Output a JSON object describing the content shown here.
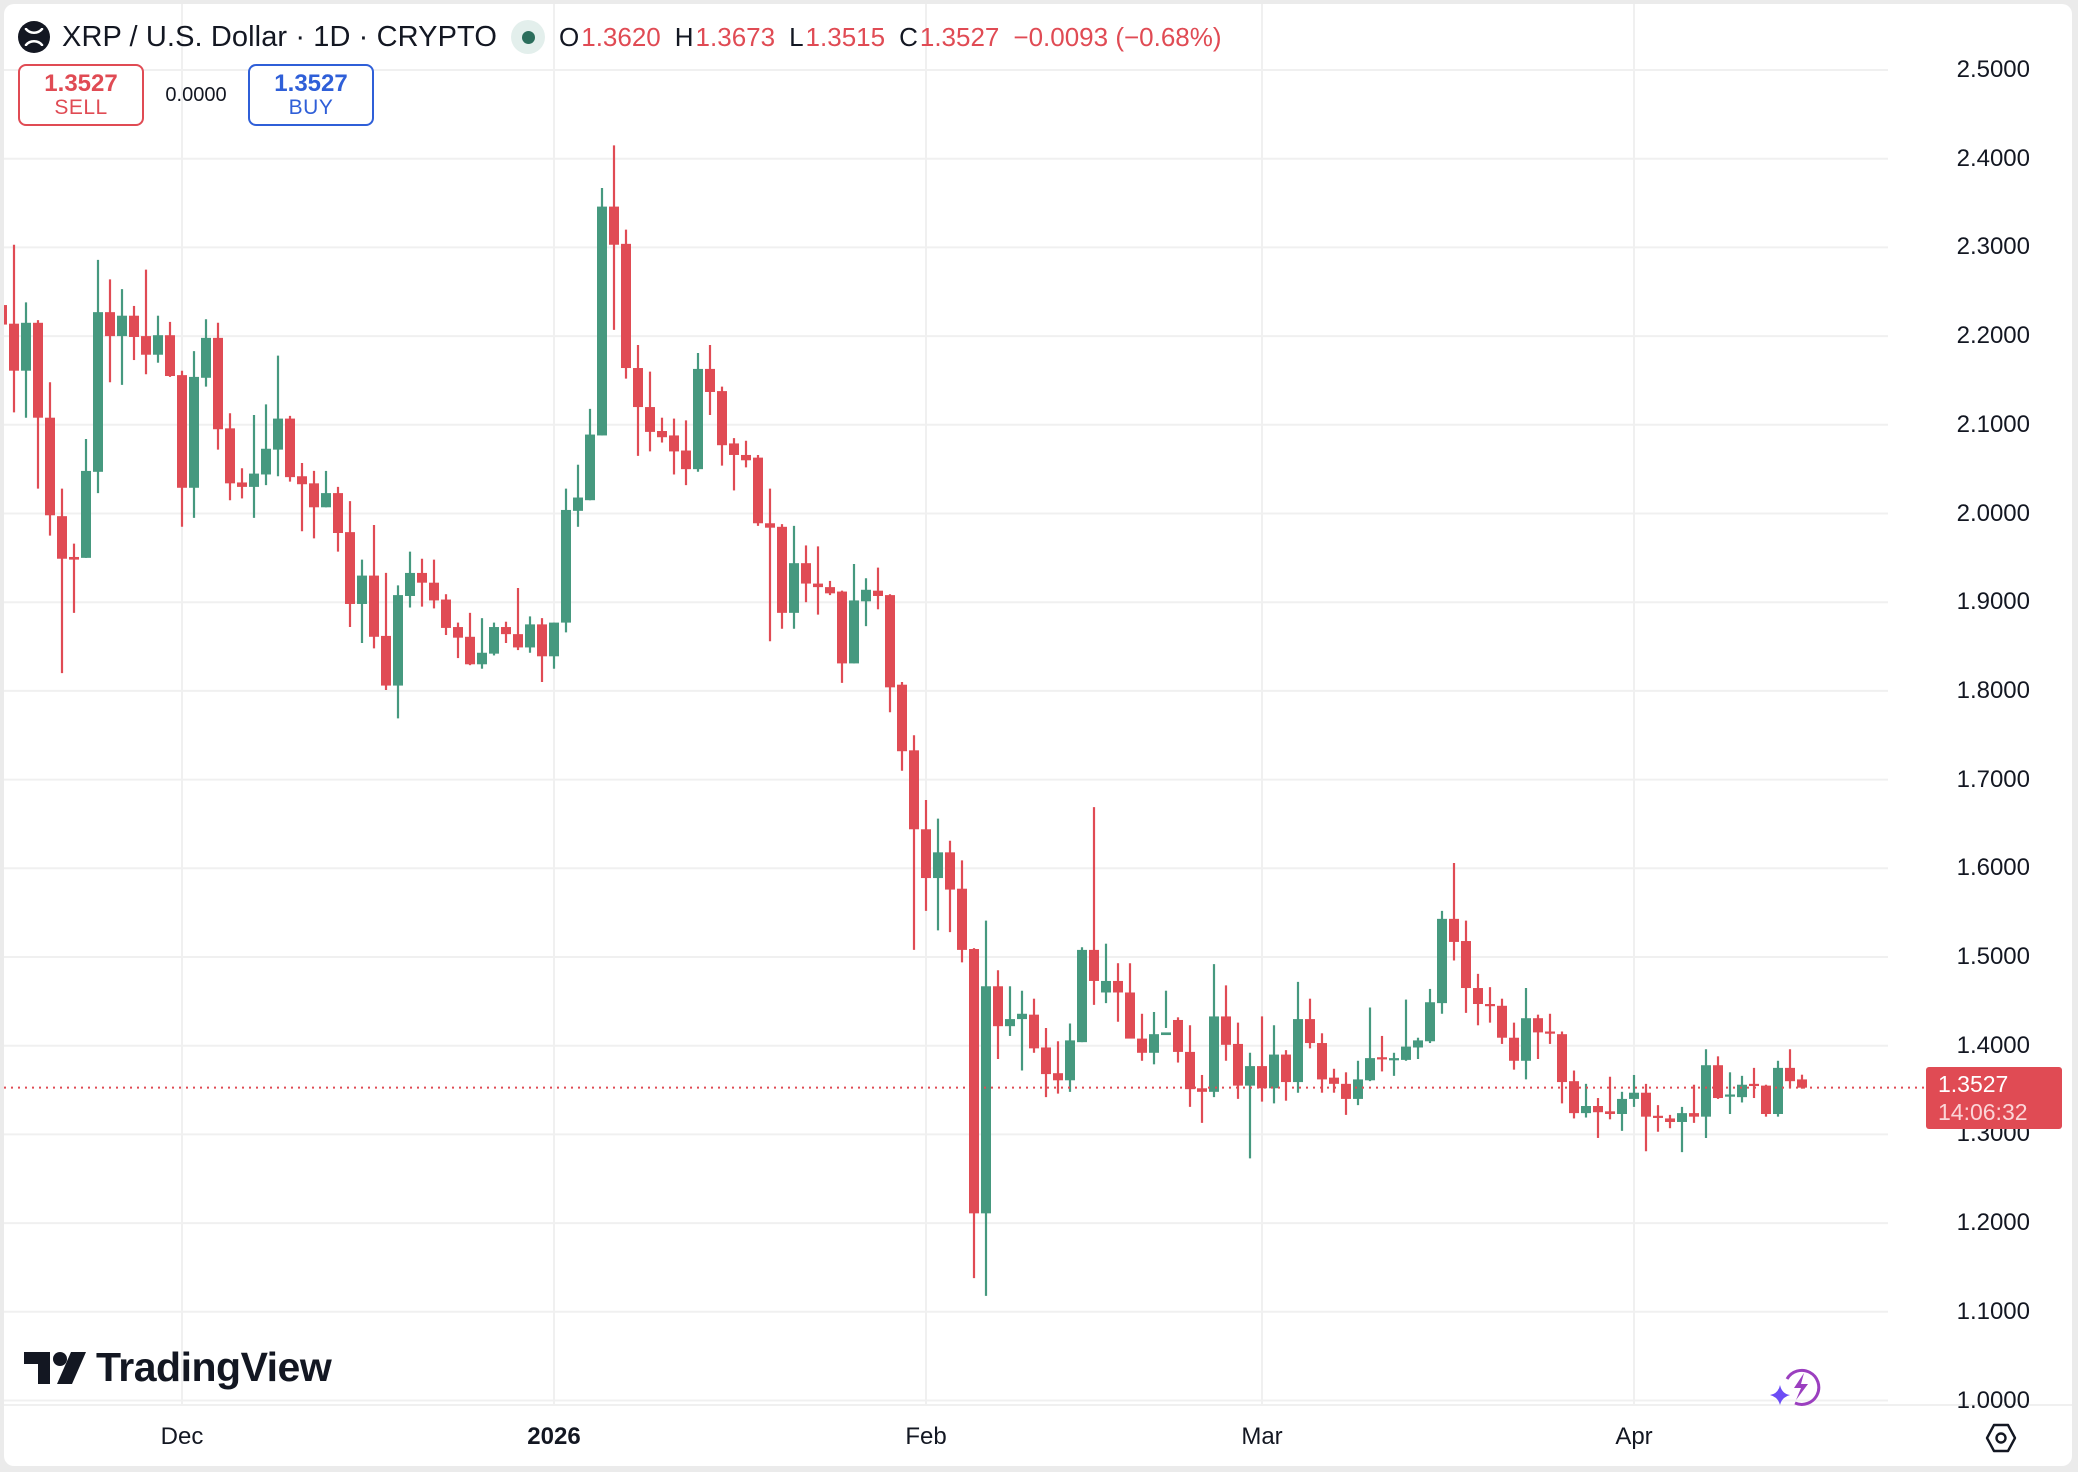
{
  "header": {
    "symbol_icon": "xrp-logo-icon",
    "title": "XRP / U.S. Dollar · 1D · CRYPTO",
    "status": "market-open-dot",
    "ohlc": {
      "o_label": "O",
      "o_value": "1.3620",
      "h_label": "H",
      "h_value": "1.3673",
      "l_label": "L",
      "l_value": "1.3515",
      "c_label": "C",
      "c_value": "1.3527",
      "change": "−0.0093 (−0.68%)"
    }
  },
  "trade": {
    "sell_price": "1.3527",
    "sell_label": "SELL",
    "spread": "0.0000",
    "buy_price": "1.3527",
    "buy_label": "BUY"
  },
  "price_tag": {
    "price": "1.3527",
    "countdown": "14:06:32"
  },
  "branding": {
    "logo_text": "TradingView"
  },
  "icons": {
    "assistant": "sparkle-lightning-icon",
    "settings": "settings-hex-icon"
  },
  "colors": {
    "up": "#46997f",
    "down": "#e04b54",
    "grid": "#f0f0f0",
    "sell": "#e04b54",
    "buy": "#2f5fd8"
  },
  "chart_data": {
    "type": "candlestick",
    "title": "XRP / U.S. Dollar · 1D · CRYPTO",
    "xlabel": "",
    "ylabel": "",
    "ylim": [
      1.0,
      2.5
    ],
    "y_ticks": [
      "2.5000",
      "2.4000",
      "2.3000",
      "2.2000",
      "2.1000",
      "2.0000",
      "1.9000",
      "1.8000",
      "1.7000",
      "1.6000",
      "1.5000",
      "1.4000",
      "1.3000",
      "1.2000",
      "1.1000",
      "1.0000"
    ],
    "x_ticks": [
      {
        "label": "Dec",
        "date": "Dec 1",
        "bold": false
      },
      {
        "label": "2026",
        "date": "Jan 1",
        "bold": true
      },
      {
        "label": "Feb",
        "date": "Feb 1",
        "bold": false
      },
      {
        "label": "Mar",
        "date": "Mar 1",
        "bold": false
      },
      {
        "label": "Apr",
        "date": "Apr 1",
        "bold": false
      }
    ],
    "grid": true,
    "current_price": 1.3527,
    "start_date": "Nov 16",
    "columns": [
      "open",
      "high",
      "low",
      "close"
    ],
    "candles": [
      [
        2.235,
        2.24,
        2.2,
        2.213
      ],
      [
        2.214,
        2.303,
        2.114,
        2.161
      ],
      [
        2.161,
        2.238,
        2.108,
        2.215
      ],
      [
        2.215,
        2.218,
        2.028,
        2.108
      ],
      [
        2.108,
        2.148,
        1.975,
        1.998
      ],
      [
        1.997,
        2.028,
        1.82,
        1.949
      ],
      [
        1.951,
        1.966,
        1.888,
        1.948
      ],
      [
        1.95,
        2.084,
        1.95,
        2.048
      ],
      [
        2.047,
        2.286,
        2.023,
        2.227
      ],
      [
        2.227,
        2.264,
        2.148,
        2.2
      ],
      [
        2.2,
        2.253,
        2.145,
        2.223
      ],
      [
        2.223,
        2.234,
        2.173,
        2.199
      ],
      [
        2.2,
        2.275,
        2.157,
        2.179
      ],
      [
        2.179,
        2.223,
        2.17,
        2.201
      ],
      [
        2.201,
        2.216,
        2.154,
        2.155
      ],
      [
        2.156,
        2.161,
        1.985,
        2.029
      ],
      [
        2.029,
        2.183,
        1.995,
        2.154
      ],
      [
        2.153,
        2.219,
        2.143,
        2.198
      ],
      [
        2.198,
        2.215,
        2.072,
        2.095
      ],
      [
        2.096,
        2.113,
        2.015,
        2.034
      ],
      [
        2.035,
        2.051,
        2.017,
        2.03
      ],
      [
        2.03,
        2.111,
        1.995,
        2.045
      ],
      [
        2.044,
        2.123,
        2.032,
        2.073
      ],
      [
        2.072,
        2.178,
        2.042,
        2.107
      ],
      [
        2.107,
        2.11,
        2.036,
        2.041
      ],
      [
        2.042,
        2.057,
        1.98,
        2.033
      ],
      [
        2.034,
        2.048,
        1.972,
        2.007
      ],
      [
        2.007,
        2.048,
        2.007,
        2.023
      ],
      [
        2.023,
        2.03,
        1.957,
        1.978
      ],
      [
        1.979,
        2.014,
        1.872,
        1.898
      ],
      [
        1.898,
        1.948,
        1.854,
        1.93
      ],
      [
        1.93,
        1.987,
        1.848,
        1.861
      ],
      [
        1.862,
        1.933,
        1.801,
        1.806
      ],
      [
        1.806,
        1.919,
        1.769,
        1.908
      ],
      [
        1.907,
        1.957,
        1.894,
        1.933
      ],
      [
        1.933,
        1.949,
        1.895,
        1.922
      ],
      [
        1.922,
        1.948,
        1.893,
        1.902
      ],
      [
        1.903,
        1.909,
        1.863,
        1.871
      ],
      [
        1.872,
        1.877,
        1.837,
        1.86
      ],
      [
        1.861,
        1.888,
        1.829,
        1.83
      ],
      [
        1.83,
        1.882,
        1.825,
        1.843
      ],
      [
        1.842,
        1.877,
        1.84,
        1.872
      ],
      [
        1.872,
        1.878,
        1.854,
        1.864
      ],
      [
        1.864,
        1.916,
        1.846,
        1.849
      ],
      [
        1.849,
        1.884,
        1.843,
        1.875
      ],
      [
        1.875,
        1.882,
        1.81,
        1.839
      ],
      [
        1.839,
        1.877,
        1.825,
        1.877
      ],
      [
        1.877,
        2.028,
        1.866,
        2.004
      ],
      [
        2.003,
        2.055,
        1.985,
        2.018
      ],
      [
        2.015,
        2.118,
        2.015,
        2.089
      ],
      [
        2.088,
        2.367,
        2.088,
        2.346
      ],
      [
        2.346,
        2.415,
        2.207,
        2.303
      ],
      [
        2.304,
        2.32,
        2.152,
        2.164
      ],
      [
        2.164,
        2.19,
        2.065,
        2.12
      ],
      [
        2.12,
        2.16,
        2.07,
        2.092
      ],
      [
        2.093,
        2.108,
        2.08,
        2.086
      ],
      [
        2.088,
        2.107,
        2.044,
        2.07
      ],
      [
        2.071,
        2.105,
        2.032,
        2.05
      ],
      [
        2.05,
        2.181,
        2.047,
        2.163
      ],
      [
        2.163,
        2.19,
        2.111,
        2.137
      ],
      [
        2.138,
        2.143,
        2.054,
        2.077
      ],
      [
        2.079,
        2.085,
        2.026,
        2.066
      ],
      [
        2.066,
        2.082,
        2.052,
        2.06
      ],
      [
        2.063,
        2.066,
        1.986,
        1.989
      ],
      [
        1.989,
        2.028,
        1.856,
        1.984
      ],
      [
        1.985,
        1.988,
        1.87,
        1.888
      ],
      [
        1.888,
        1.986,
        1.87,
        1.944
      ],
      [
        1.944,
        1.964,
        1.9,
        1.921
      ],
      [
        1.921,
        1.963,
        1.886,
        1.917
      ],
      [
        1.917,
        1.924,
        1.908,
        1.91
      ],
      [
        1.912,
        1.913,
        1.809,
        1.831
      ],
      [
        1.831,
        1.943,
        1.831,
        1.902
      ],
      [
        1.901,
        1.927,
        1.873,
        1.914
      ],
      [
        1.913,
        1.939,
        1.892,
        1.907
      ],
      [
        1.908,
        1.909,
        1.776,
        1.804
      ],
      [
        1.807,
        1.81,
        1.71,
        1.732
      ],
      [
        1.733,
        1.75,
        1.508,
        1.644
      ],
      [
        1.644,
        1.677,
        1.552,
        1.589
      ],
      [
        1.589,
        1.656,
        1.53,
        1.618
      ],
      [
        1.618,
        1.631,
        1.528,
        1.576
      ],
      [
        1.577,
        1.609,
        1.494,
        1.508
      ],
      [
        1.509,
        1.51,
        1.138,
        1.211
      ],
      [
        1.211,
        1.541,
        1.118,
        1.467
      ],
      [
        1.467,
        1.485,
        1.385,
        1.422
      ],
      [
        1.422,
        1.467,
        1.411,
        1.43
      ],
      [
        1.43,
        1.462,
        1.372,
        1.436
      ],
      [
        1.435,
        1.453,
        1.392,
        1.397
      ],
      [
        1.398,
        1.42,
        1.342,
        1.368
      ],
      [
        1.369,
        1.405,
        1.346,
        1.361
      ],
      [
        1.361,
        1.425,
        1.348,
        1.406
      ],
      [
        1.404,
        1.511,
        1.404,
        1.508
      ],
      [
        1.508,
        1.669,
        1.446,
        1.473
      ],
      [
        1.46,
        1.515,
        1.448,
        1.473
      ],
      [
        1.473,
        1.493,
        1.427,
        1.46
      ],
      [
        1.46,
        1.493,
        1.411,
        1.408
      ],
      [
        1.408,
        1.436,
        1.383,
        1.392
      ],
      [
        1.392,
        1.438,
        1.379,
        1.413
      ],
      [
        1.412,
        1.462,
        1.42,
        1.415
      ],
      [
        1.429,
        1.432,
        1.381,
        1.393
      ],
      [
        1.393,
        1.423,
        1.331,
        1.351
      ],
      [
        1.352,
        1.367,
        1.313,
        1.348
      ],
      [
        1.348,
        1.492,
        1.342,
        1.433
      ],
      [
        1.433,
        1.468,
        1.383,
        1.401
      ],
      [
        1.402,
        1.426,
        1.34,
        1.355
      ],
      [
        1.355,
        1.392,
        1.273,
        1.377
      ],
      [
        1.377,
        1.433,
        1.337,
        1.352
      ],
      [
        1.352,
        1.423,
        1.335,
        1.39
      ],
      [
        1.39,
        1.395,
        1.338,
        1.359
      ],
      [
        1.359,
        1.472,
        1.347,
        1.43
      ],
      [
        1.43,
        1.453,
        1.397,
        1.403
      ],
      [
        1.403,
        1.414,
        1.347,
        1.362
      ],
      [
        1.364,
        1.374,
        1.347,
        1.357
      ],
      [
        1.357,
        1.37,
        1.322,
        1.34
      ],
      [
        1.34,
        1.383,
        1.333,
        1.362
      ],
      [
        1.361,
        1.443,
        1.36,
        1.386
      ],
      [
        1.387,
        1.411,
        1.371,
        1.385
      ],
      [
        1.384,
        1.392,
        1.366,
        1.386
      ],
      [
        1.384,
        1.452,
        1.383,
        1.399
      ],
      [
        1.398,
        1.409,
        1.385,
        1.406
      ],
      [
        1.405,
        1.464,
        1.403,
        1.449
      ],
      [
        1.448,
        1.552,
        1.436,
        1.543
      ],
      [
        1.543,
        1.606,
        1.496,
        1.517
      ],
      [
        1.518,
        1.541,
        1.437,
        1.465
      ],
      [
        1.465,
        1.481,
        1.423,
        1.447
      ],
      [
        1.447,
        1.466,
        1.426,
        1.445
      ],
      [
        1.445,
        1.453,
        1.402,
        1.409
      ],
      [
        1.409,
        1.426,
        1.373,
        1.383
      ],
      [
        1.383,
        1.465,
        1.362,
        1.431
      ],
      [
        1.431,
        1.435,
        1.385,
        1.415
      ],
      [
        1.416,
        1.436,
        1.402,
        1.415
      ],
      [
        1.413,
        1.416,
        1.335,
        1.359
      ],
      [
        1.36,
        1.372,
        1.318,
        1.324
      ],
      [
        1.324,
        1.357,
        1.319,
        1.332
      ],
      [
        1.332,
        1.341,
        1.296,
        1.325
      ],
      [
        1.326,
        1.365,
        1.317,
        1.323
      ],
      [
        1.323,
        1.348,
        1.304,
        1.34
      ],
      [
        1.34,
        1.367,
        1.331,
        1.347
      ],
      [
        1.347,
        1.357,
        1.281,
        1.32
      ],
      [
        1.321,
        1.333,
        1.303,
        1.32
      ],
      [
        1.318,
        1.322,
        1.307,
        1.314
      ],
      [
        1.314,
        1.331,
        1.28,
        1.324
      ],
      [
        1.324,
        1.356,
        1.313,
        1.32
      ],
      [
        1.32,
        1.396,
        1.296,
        1.378
      ],
      [
        1.378,
        1.388,
        1.34,
        1.341
      ],
      [
        1.343,
        1.37,
        1.323,
        1.345
      ],
      [
        1.342,
        1.366,
        1.336,
        1.356
      ],
      [
        1.357,
        1.375,
        1.341,
        1.355
      ],
      [
        1.355,
        1.356,
        1.32,
        1.323
      ],
      [
        1.323,
        1.383,
        1.32,
        1.375
      ],
      [
        1.375,
        1.396,
        1.352,
        1.36
      ],
      [
        1.362,
        1.3673,
        1.3515,
        1.3527
      ]
    ]
  }
}
